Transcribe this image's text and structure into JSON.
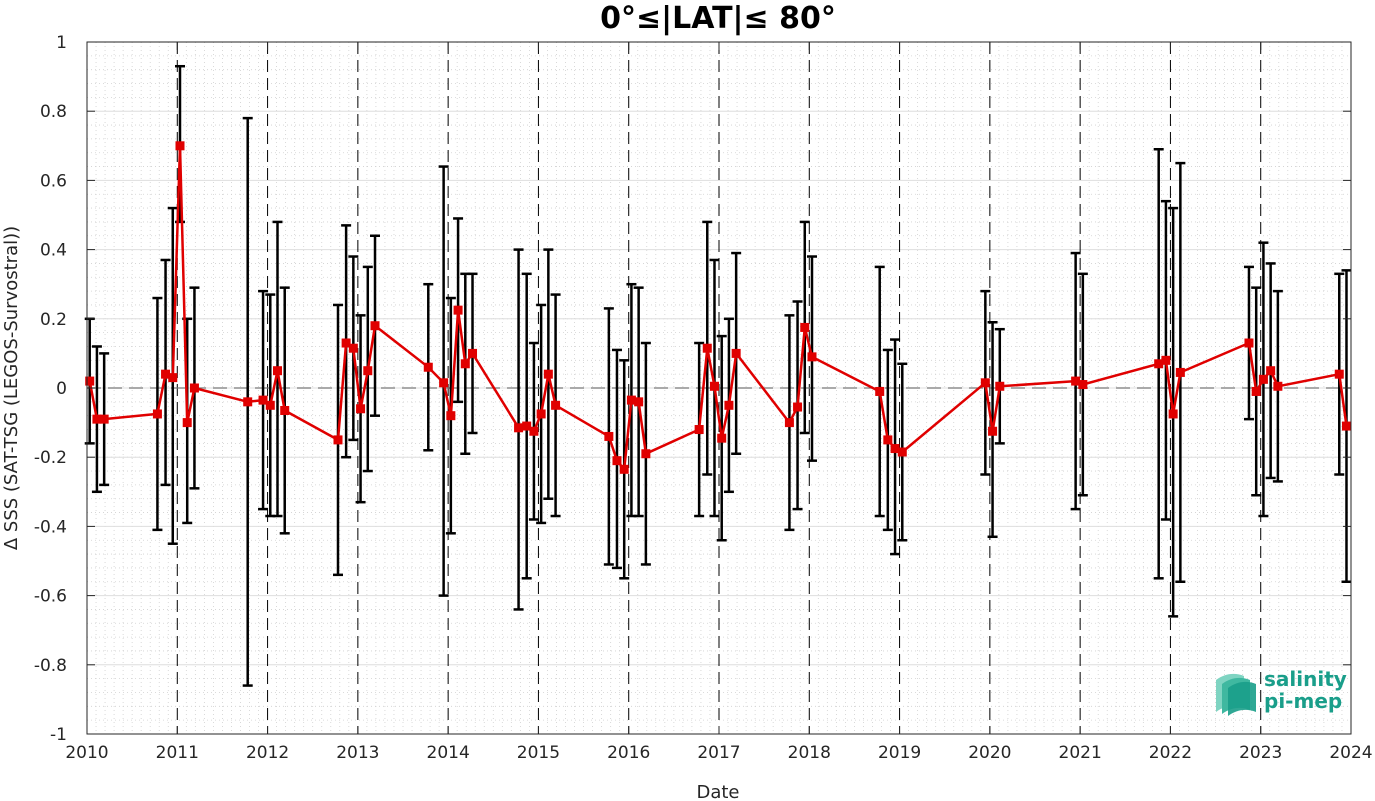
{
  "chart_data": {
    "type": "line",
    "title": "0°≤|LAT|≤ 80°",
    "xlabel": "Date",
    "ylabel": "Δ SSS (SAT-TSG (LEGOS-Survostral))",
    "xlim": [
      2010,
      2024
    ],
    "ylim": [
      -1,
      1
    ],
    "x_ticks": [
      "2010",
      "2011",
      "2012",
      "2013",
      "2014",
      "2015",
      "2016",
      "2017",
      "2018",
      "2019",
      "2020",
      "2021",
      "2022",
      "2023",
      "2024"
    ],
    "y_ticks": [
      "-1",
      "-0.8",
      "-0.6",
      "-0.4",
      "-0.2",
      "0",
      "0.2",
      "0.4",
      "0.6",
      "0.8",
      "1"
    ],
    "grid": true,
    "zero_line": 0,
    "year_lines": [
      2011,
      2012,
      2013,
      2014,
      2015,
      2016,
      2017,
      2018,
      2019,
      2020,
      2021,
      2022,
      2023,
      2024
    ],
    "series": [
      {
        "color": "#e00000",
        "errorbar_color": "#000000",
        "marker": "square",
        "points": [
          {
            "x": 2010.03,
            "y": 0.02,
            "low": -0.16,
            "high": 0.2
          },
          {
            "x": 2010.11,
            "y": -0.09,
            "low": -0.3,
            "high": 0.12
          },
          {
            "x": 2010.19,
            "y": -0.09,
            "low": -0.28,
            "high": 0.1
          },
          {
            "x": 2010.78,
            "y": -0.075,
            "low": -0.41,
            "high": 0.26
          },
          {
            "x": 2010.87,
            "y": 0.04,
            "low": -0.28,
            "high": 0.37
          },
          {
            "x": 2010.95,
            "y": 0.03,
            "low": -0.45,
            "high": 0.52
          },
          {
            "x": 2011.03,
            "y": 0.7,
            "low": 0.48,
            "high": 0.93
          },
          {
            "x": 2011.11,
            "y": -0.1,
            "low": -0.39,
            "high": 0.2
          },
          {
            "x": 2011.19,
            "y": 0.0,
            "low": -0.29,
            "high": 0.29
          },
          {
            "x": 2011.78,
            "y": -0.04,
            "low": -0.86,
            "high": 0.78
          },
          {
            "x": 2011.95,
            "y": -0.035,
            "low": -0.35,
            "high": 0.28
          },
          {
            "x": 2012.03,
            "y": -0.05,
            "low": -0.37,
            "high": 0.27
          },
          {
            "x": 2012.11,
            "y": 0.05,
            "low": -0.37,
            "high": 0.48
          },
          {
            "x": 2012.19,
            "y": -0.065,
            "low": -0.42,
            "high": 0.29
          },
          {
            "x": 2012.78,
            "y": -0.15,
            "low": -0.54,
            "high": 0.24
          },
          {
            "x": 2012.87,
            "y": 0.13,
            "low": -0.2,
            "high": 0.47
          },
          {
            "x": 2012.95,
            "y": 0.115,
            "low": -0.15,
            "high": 0.38
          },
          {
            "x": 2013.03,
            "y": -0.06,
            "low": -0.33,
            "high": 0.21
          },
          {
            "x": 2013.11,
            "y": 0.05,
            "low": -0.24,
            "high": 0.35
          },
          {
            "x": 2013.19,
            "y": 0.18,
            "low": -0.08,
            "high": 0.44
          },
          {
            "x": 2013.78,
            "y": 0.06,
            "low": -0.18,
            "high": 0.3
          },
          {
            "x": 2013.95,
            "y": 0.015,
            "low": -0.6,
            "high": 0.64
          },
          {
            "x": 2014.03,
            "y": -0.08,
            "low": -0.42,
            "high": 0.26
          },
          {
            "x": 2014.11,
            "y": 0.225,
            "low": -0.04,
            "high": 0.49
          },
          {
            "x": 2014.19,
            "y": 0.07,
            "low": -0.19,
            "high": 0.33
          },
          {
            "x": 2014.27,
            "y": 0.1,
            "low": -0.13,
            "high": 0.33
          },
          {
            "x": 2014.78,
            "y": -0.115,
            "low": -0.64,
            "high": 0.4
          },
          {
            "x": 2014.87,
            "y": -0.11,
            "low": -0.55,
            "high": 0.33
          },
          {
            "x": 2014.95,
            "y": -0.125,
            "low": -0.38,
            "high": 0.13
          },
          {
            "x": 2015.03,
            "y": -0.075,
            "low": -0.39,
            "high": 0.24
          },
          {
            "x": 2015.11,
            "y": 0.04,
            "low": -0.32,
            "high": 0.4
          },
          {
            "x": 2015.19,
            "y": -0.05,
            "low": -0.37,
            "high": 0.27
          },
          {
            "x": 2015.78,
            "y": -0.14,
            "low": -0.51,
            "high": 0.23
          },
          {
            "x": 2015.87,
            "y": -0.21,
            "low": -0.52,
            "high": 0.11
          },
          {
            "x": 2015.95,
            "y": -0.235,
            "low": -0.55,
            "high": 0.08
          },
          {
            "x": 2016.03,
            "y": -0.035,
            "low": -0.37,
            "high": 0.3
          },
          {
            "x": 2016.11,
            "y": -0.04,
            "low": -0.37,
            "high": 0.29
          },
          {
            "x": 2016.19,
            "y": -0.19,
            "low": -0.51,
            "high": 0.13
          },
          {
            "x": 2016.78,
            "y": -0.12,
            "low": -0.37,
            "high": 0.13
          },
          {
            "x": 2016.87,
            "y": 0.115,
            "low": -0.25,
            "high": 0.48
          },
          {
            "x": 2016.95,
            "y": 0.005,
            "low": -0.37,
            "high": 0.37
          },
          {
            "x": 2017.03,
            "y": -0.145,
            "low": -0.44,
            "high": 0.15
          },
          {
            "x": 2017.11,
            "y": -0.05,
            "low": -0.3,
            "high": 0.2
          },
          {
            "x": 2017.19,
            "y": 0.1,
            "low": -0.19,
            "high": 0.39
          },
          {
            "x": 2017.78,
            "y": -0.1,
            "low": -0.41,
            "high": 0.21
          },
          {
            "x": 2017.87,
            "y": -0.055,
            "low": -0.35,
            "high": 0.25
          },
          {
            "x": 2017.95,
            "y": 0.175,
            "low": -0.13,
            "high": 0.48
          },
          {
            "x": 2018.03,
            "y": 0.09,
            "low": -0.21,
            "high": 0.38
          },
          {
            "x": 2018.78,
            "y": -0.01,
            "low": -0.37,
            "high": 0.35
          },
          {
            "x": 2018.87,
            "y": -0.15,
            "low": -0.41,
            "high": 0.11
          },
          {
            "x": 2018.95,
            "y": -0.175,
            "low": -0.48,
            "high": 0.14
          },
          {
            "x": 2019.03,
            "y": -0.185,
            "low": -0.44,
            "high": 0.07
          },
          {
            "x": 2019.95,
            "y": 0.015,
            "low": -0.25,
            "high": 0.28
          },
          {
            "x": 2020.03,
            "y": -0.125,
            "low": -0.43,
            "high": 0.19
          },
          {
            "x": 2020.11,
            "y": 0.005,
            "low": -0.16,
            "high": 0.17
          },
          {
            "x": 2020.95,
            "y": 0.02,
            "low": -0.35,
            "high": 0.39
          },
          {
            "x": 2021.03,
            "y": 0.01,
            "low": -0.31,
            "high": 0.33
          },
          {
            "x": 2021.87,
            "y": 0.07,
            "low": -0.55,
            "high": 0.69
          },
          {
            "x": 2021.95,
            "y": 0.08,
            "low": -0.38,
            "high": 0.54
          },
          {
            "x": 2022.03,
            "y": -0.075,
            "low": -0.66,
            "high": 0.52
          },
          {
            "x": 2022.11,
            "y": 0.045,
            "low": -0.56,
            "high": 0.65
          },
          {
            "x": 2022.87,
            "y": 0.13,
            "low": -0.09,
            "high": 0.35
          },
          {
            "x": 2022.95,
            "y": -0.01,
            "low": -0.31,
            "high": 0.29
          },
          {
            "x": 2023.03,
            "y": 0.025,
            "low": -0.37,
            "high": 0.42
          },
          {
            "x": 2023.11,
            "y": 0.05,
            "low": -0.26,
            "high": 0.36
          },
          {
            "x": 2023.19,
            "y": 0.005,
            "low": -0.27,
            "high": 0.28
          },
          {
            "x": 2023.87,
            "y": 0.04,
            "low": -0.25,
            "high": 0.33
          },
          {
            "x": 2023.95,
            "y": -0.11,
            "low": -0.56,
            "high": 0.34
          }
        ]
      }
    ]
  },
  "logo": {
    "line1": "salinity",
    "line2": "pi-mep",
    "color": "#1a9e8a"
  }
}
